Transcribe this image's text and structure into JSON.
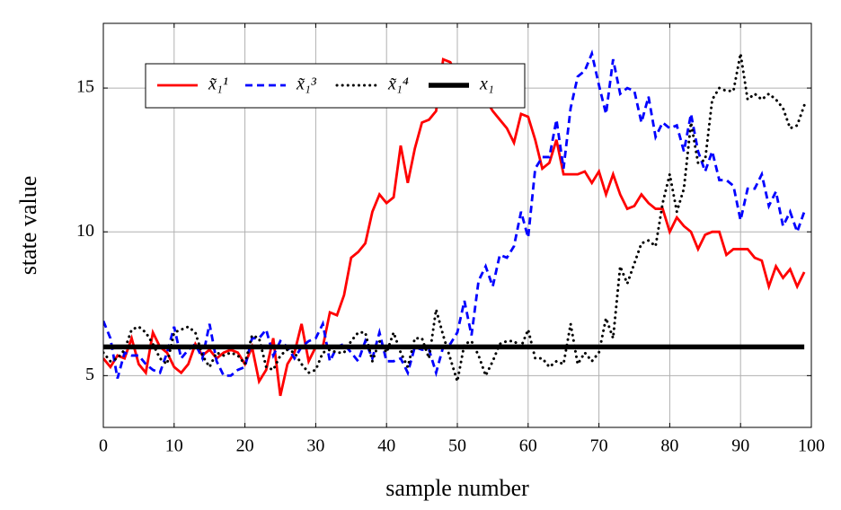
{
  "chart_data": {
    "type": "line",
    "xlabel": "sample number",
    "ylabel": "state value",
    "xlim": [
      0,
      100
    ],
    "ylim": [
      3.2,
      17.25
    ],
    "xticks": [
      0,
      10,
      20,
      30,
      40,
      50,
      60,
      70,
      80,
      90,
      100
    ],
    "yticks": [
      5,
      10,
      15
    ],
    "grid": true,
    "legend": "upper left",
    "x": [
      0,
      1,
      2,
      3,
      4,
      5,
      6,
      7,
      8,
      9,
      10,
      11,
      12,
      13,
      14,
      15,
      16,
      17,
      18,
      19,
      20,
      21,
      22,
      23,
      24,
      25,
      26,
      27,
      28,
      29,
      30,
      31,
      32,
      33,
      34,
      35,
      36,
      37,
      38,
      39,
      40,
      41,
      42,
      43,
      44,
      45,
      46,
      47,
      48,
      49,
      50,
      51,
      52,
      53,
      54,
      55,
      56,
      57,
      58,
      59,
      60,
      61,
      62,
      63,
      64,
      65,
      66,
      67,
      68,
      69,
      70,
      71,
      72,
      73,
      74,
      75,
      76,
      77,
      78,
      79,
      80,
      81,
      82,
      83,
      84,
      85,
      86,
      87,
      88,
      89,
      90,
      91,
      92,
      93,
      94,
      95,
      96,
      97,
      98,
      99
    ],
    "series": [
      {
        "name": "x̃₁¹",
        "color": "#ff0000",
        "style": "solid",
        "values": [
          5.6,
          5.3,
          5.7,
          5.6,
          6.3,
          5.4,
          5.1,
          6.5,
          6.0,
          5.8,
          5.3,
          5.1,
          5.4,
          6.1,
          5.7,
          5.9,
          5.6,
          5.8,
          5.9,
          5.8,
          5.4,
          6.0,
          4.8,
          5.2,
          6.3,
          4.3,
          5.4,
          5.8,
          6.8,
          5.5,
          6.0,
          6.0,
          7.2,
          7.1,
          7.8,
          9.1,
          9.3,
          9.6,
          10.7,
          11.3,
          11.0,
          11.2,
          13.0,
          11.7,
          12.9,
          13.8,
          13.9,
          14.2,
          16.0,
          15.9,
          15.4,
          15.2,
          15.0,
          14.8,
          14.6,
          14.2,
          13.9,
          13.6,
          13.1,
          14.1,
          14.0,
          13.2,
          12.2,
          12.4,
          13.2,
          12.0,
          12.0,
          12.0,
          12.1,
          11.7,
          12.1,
          11.3,
          12.0,
          11.3,
          10.8,
          10.9,
          11.3,
          11.0,
          10.8,
          10.8,
          10.0,
          10.5,
          10.2,
          10.0,
          9.4,
          9.9,
          10.0,
          10.0,
          9.2,
          9.4,
          9.4,
          9.4,
          9.1,
          9.0,
          8.1,
          8.8,
          8.4,
          8.7,
          8.1,
          8.6
        ]
      },
      {
        "name": "x̃₁³",
        "color": "#0000ff",
        "style": "dashed",
        "values": [
          6.9,
          6.3,
          4.9,
          5.8,
          5.7,
          5.7,
          5.4,
          5.2,
          5.1,
          5.8,
          6.7,
          5.6,
          5.9,
          6.1,
          5.6,
          6.8,
          5.5,
          5.0,
          5.0,
          5.2,
          5.3,
          6.3,
          6.3,
          6.6,
          5.7,
          6.2,
          6.0,
          5.6,
          6.0,
          6.2,
          6.3,
          6.8,
          5.5,
          6.0,
          6.1,
          5.8,
          5.5,
          6.2,
          5.6,
          6.5,
          5.5,
          5.5,
          5.6,
          5.1,
          6.0,
          5.9,
          5.9,
          5.1,
          6.0,
          6.1,
          6.5,
          7.6,
          6.4,
          8.3,
          8.8,
          8.1,
          9.2,
          9.1,
          9.5,
          10.7,
          9.8,
          12.2,
          12.6,
          12.6,
          13.9,
          12.2,
          14.3,
          15.4,
          15.6,
          16.2,
          15.1,
          14.1,
          16.0,
          14.8,
          15.0,
          14.9,
          13.8,
          14.7,
          13.3,
          13.8,
          13.6,
          13.7,
          12.8,
          14.1,
          12.8,
          12.1,
          12.8,
          11.8,
          11.8,
          11.6,
          10.4,
          11.5,
          11.5,
          12.0,
          10.9,
          11.4,
          10.2,
          10.7,
          10.0,
          10.7
        ]
      },
      {
        "name": "x̃₁⁴",
        "color": "#000000",
        "style": "dotted",
        "values": [
          5.8,
          5.5,
          5.6,
          5.9,
          6.6,
          6.7,
          6.5,
          6.1,
          5.6,
          5.4,
          6.5,
          6.6,
          6.7,
          6.5,
          5.7,
          5.3,
          5.8,
          5.7,
          5.8,
          5.7,
          5.4,
          6.4,
          6.3,
          5.3,
          5.2,
          5.7,
          5.9,
          5.8,
          5.4,
          5.1,
          5.2,
          5.8,
          5.9,
          5.8,
          5.8,
          6.2,
          6.5,
          6.5,
          5.5,
          6.2,
          5.8,
          6.5,
          5.8,
          5.3,
          6.3,
          6.3,
          5.6,
          7.3,
          6.4,
          5.6,
          4.8,
          6.1,
          6.2,
          5.7,
          5.0,
          5.5,
          6.1,
          6.2,
          6.2,
          6.0,
          6.6,
          5.6,
          5.6,
          5.3,
          5.5,
          5.4,
          6.8,
          5.4,
          5.8,
          5.5,
          5.8,
          7.0,
          6.3,
          8.8,
          8.2,
          8.9,
          9.6,
          9.7,
          9.5,
          11.0,
          12.0,
          10.7,
          11.5,
          13.8,
          12.4,
          12.5,
          14.6,
          15.0,
          14.9,
          14.9,
          16.2,
          14.6,
          14.8,
          14.6,
          14.8,
          14.6,
          14.3,
          13.6,
          13.7,
          14.4
        ]
      },
      {
        "name": "x₁",
        "color": "#000000",
        "style": "bold",
        "values": [
          6,
          6,
          6,
          6,
          6,
          6,
          6,
          6,
          6,
          6,
          6,
          6,
          6,
          6,
          6,
          6,
          6,
          6,
          6,
          6,
          6,
          6,
          6,
          6,
          6,
          6,
          6,
          6,
          6,
          6,
          6,
          6,
          6,
          6,
          6,
          6,
          6,
          6,
          6,
          6,
          6,
          6,
          6,
          6,
          6,
          6,
          6,
          6,
          6,
          6,
          6,
          6,
          6,
          6,
          6,
          6,
          6,
          6,
          6,
          6,
          6,
          6,
          6,
          6,
          6,
          6,
          6,
          6,
          6,
          6,
          6,
          6,
          6,
          6,
          6,
          6,
          6,
          6,
          6,
          6,
          6,
          6,
          6,
          6,
          6,
          6,
          6,
          6,
          6,
          6,
          6,
          6,
          6,
          6,
          6,
          6,
          6,
          6,
          6,
          6
        ]
      }
    ]
  }
}
